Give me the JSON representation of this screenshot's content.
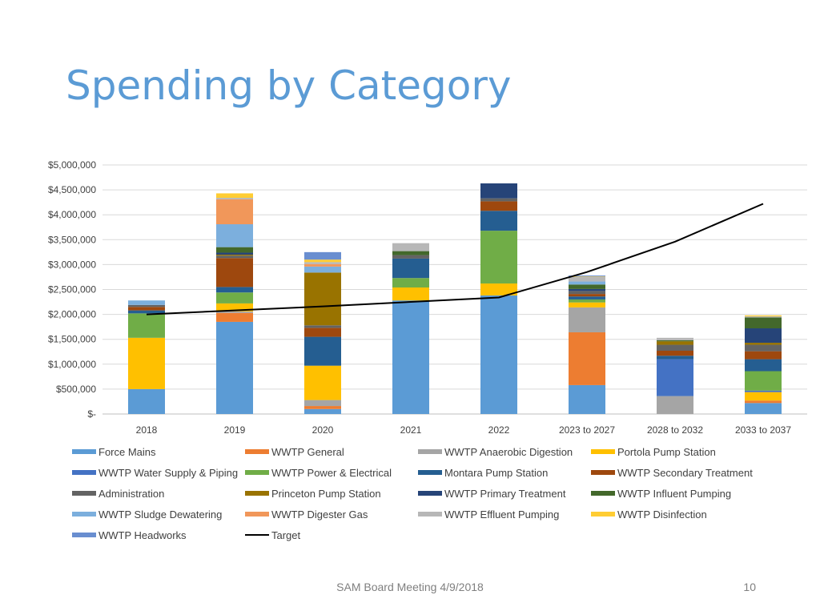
{
  "slide": {
    "title": "Spending by Category",
    "footer": "SAM Board Meeting 4/9/2018",
    "page_number": "10"
  },
  "chart_data": {
    "type": "bar",
    "stacked": true,
    "title": "",
    "xlabel": "",
    "ylabel": "",
    "ylim": [
      0,
      5000000
    ],
    "yticks": [
      0,
      500000,
      1000000,
      1500000,
      2000000,
      2500000,
      3000000,
      3500000,
      4000000,
      4500000,
      5000000
    ],
    "ytick_labels": [
      "$-",
      "$500,000",
      "$1,000,000",
      "$1,500,000",
      "$2,000,000",
      "$2,500,000",
      "$3,000,000",
      "$3,500,000",
      "$4,000,000",
      "$4,500,000",
      "$5,000,000"
    ],
    "grid": true,
    "legend_position": "bottom",
    "categories": [
      "2018",
      "2019",
      "2020",
      "2021",
      "2022",
      "2023 to 2027",
      "2028 to 2032",
      "2033 to 2037"
    ],
    "series": [
      {
        "name": "Force Mains",
        "color": "#5b9bd5",
        "values": [
          500000,
          1850000,
          100000,
          2280000,
          2380000,
          580000,
          0,
          220000
        ]
      },
      {
        "name": "WWTP General",
        "color": "#ed7d31",
        "values": [
          0,
          180000,
          60000,
          0,
          0,
          1060000,
          0,
          50000
        ]
      },
      {
        "name": "WWTP Anaerobic Digestion",
        "color": "#a5a5a5",
        "values": [
          0,
          30000,
          120000,
          0,
          0,
          500000,
          360000,
          0
        ]
      },
      {
        "name": "Portola Pump Station",
        "color": "#ffc000",
        "values": [
          1030000,
          160000,
          690000,
          260000,
          240000,
          100000,
          0,
          170000
        ]
      },
      {
        "name": "WWTP Water Supply & Piping",
        "color": "#4472c4",
        "values": [
          0,
          0,
          0,
          0,
          0,
          0,
          740000,
          30000
        ]
      },
      {
        "name": "WWTP Power & Electrical",
        "color": "#70ad47",
        "values": [
          490000,
          220000,
          0,
          190000,
          1060000,
          60000,
          0,
          390000
        ]
      },
      {
        "name": "Montara Pump Station",
        "color": "#255e91",
        "values": [
          60000,
          110000,
          580000,
          390000,
          400000,
          60000,
          70000,
          240000
        ]
      },
      {
        "name": "WWTP Secondary Treatment",
        "color": "#9e480e",
        "values": [
          70000,
          580000,
          180000,
          0,
          190000,
          50000,
          100000,
          160000
        ]
      },
      {
        "name": "Administration",
        "color": "#636363",
        "values": [
          40000,
          50000,
          50000,
          70000,
          60000,
          60000,
          120000,
          130000
        ]
      },
      {
        "name": "Princeton Pump Station",
        "color": "#997300",
        "values": [
          0,
          20000,
          1060000,
          0,
          0,
          0,
          70000,
          40000
        ]
      },
      {
        "name": "WWTP Primary Treatment",
        "color": "#264478",
        "values": [
          0,
          40000,
          0,
          0,
          300000,
          40000,
          0,
          290000
        ]
      },
      {
        "name": "WWTP Influent Pumping",
        "color": "#43682b",
        "values": [
          0,
          110000,
          0,
          80000,
          0,
          90000,
          20000,
          220000
        ]
      },
      {
        "name": "WWTP Sludge Dewatering",
        "color": "#7cafdd",
        "values": [
          90000,
          460000,
          120000,
          0,
          0,
          60000,
          0,
          0
        ]
      },
      {
        "name": "WWTP Digester Gas",
        "color": "#f1975a",
        "values": [
          0,
          500000,
          50000,
          0,
          0,
          0,
          0,
          0
        ]
      },
      {
        "name": "WWTP Effluent Pumping",
        "color": "#b7b7b7",
        "values": [
          0,
          30000,
          40000,
          160000,
          0,
          90000,
          50000,
          20000
        ]
      },
      {
        "name": "WWTP Disinfection",
        "color": "#ffcd33",
        "values": [
          0,
          90000,
          50000,
          0,
          0,
          10000,
          0,
          20000
        ]
      },
      {
        "name": "WWTP Headworks",
        "color": "#698ed0",
        "values": [
          0,
          0,
          150000,
          0,
          0,
          20000,
          0,
          0
        ]
      }
    ],
    "target_line": {
      "name": "Target",
      "color": "#000000",
      "values": [
        2000000,
        2080000,
        2160000,
        2250000,
        2340000,
        2850000,
        3460000,
        4220000
      ]
    }
  }
}
